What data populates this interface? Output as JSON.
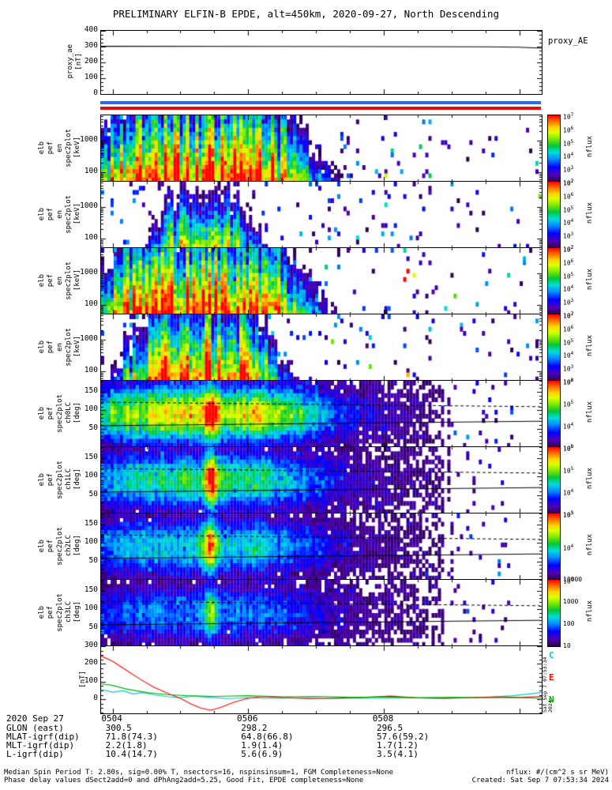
{
  "title": "PRELIMINARY ELFIN-B EPDE, alt=450km, 2020-09-27, North Descending",
  "time": {
    "tmin": 3.83,
    "tmax": 10.33,
    "major_ticks": [
      4,
      6,
      8,
      10
    ],
    "minor_step": 0.5,
    "labels": [
      {
        "t": 4,
        "text": "0504"
      },
      {
        "t": 6,
        "text": "0506"
      },
      {
        "t": 8,
        "text": "0508"
      }
    ],
    "date_label": "2020 Sep 27"
  },
  "flag_bars": {
    "top_color": "#2b6be0",
    "bottom_color": "#e01010"
  },
  "angle_envelope": [
    [
      3.83,
      0.6
    ],
    [
      4.2,
      0.75
    ],
    [
      4.8,
      0.85
    ],
    [
      5.2,
      0.92
    ],
    [
      5.45,
      1.0
    ],
    [
      5.7,
      0.8
    ],
    [
      6.1,
      0.88
    ],
    [
      6.5,
      0.7
    ],
    [
      6.9,
      0.55
    ],
    [
      7.3,
      0.32
    ],
    [
      7.7,
      0.18
    ],
    [
      8.2,
      0.12
    ],
    [
      8.6,
      0.08
    ],
    [
      8.9,
      0.03
    ],
    [
      9.3,
      0.02
    ],
    [
      10.33,
      0.015
    ]
  ],
  "chart_data": [
    {
      "id": "proxy_ae",
      "type": "line",
      "ylabel_words": [
        "proxy_ae",
        "[nT]"
      ],
      "right_label": "proxy_AE",
      "ylim": [
        0,
        400
      ],
      "yticks": [
        0,
        100,
        200,
        300,
        400
      ],
      "minor_step": 25,
      "series": [
        {
          "name": "proxy_AE",
          "color": "#000000",
          "x": [
            3.83,
            6.0,
            8.0,
            9.5,
            10.0,
            10.33
          ],
          "y": [
            302,
            301,
            300,
            299,
            296,
            290
          ]
        }
      ]
    },
    {
      "id": "en_1",
      "type": "heatmap",
      "kind": "energy",
      "ylabel_words": [
        "elb",
        "pef",
        "en",
        "spec2plot",
        "[keV]"
      ],
      "ylim": [
        50,
        6500
      ],
      "yticks": [
        100,
        1000
      ],
      "clim_log": [
        2,
        7
      ],
      "colorbar_ticks": [
        "10^7",
        "10^6",
        "10^5",
        "10^4",
        "10^3",
        "10^2"
      ],
      "colorbar_label": "nflux",
      "model": {
        "seed": 11,
        "amp": 7.0,
        "tc": 5.3,
        "tw": 1.95,
        "slope": 2.3,
        "speck": 0.055,
        "speckAmp": 1.4
      }
    },
    {
      "id": "en_2",
      "type": "heatmap",
      "kind": "energy",
      "ylabel_words": [
        "elb",
        "pef",
        "en",
        "spec2plot",
        "[keV]"
      ],
      "ylim": [
        50,
        6500
      ],
      "yticks": [
        100,
        1000
      ],
      "clim_log": [
        2,
        7
      ],
      "colorbar_ticks": [
        "10^7",
        "10^6",
        "10^5",
        "10^4",
        "10^3",
        "10^2"
      ],
      "colorbar_label": "nflux",
      "model": {
        "seed": 22,
        "amp": 5.5,
        "tc": 5.35,
        "tw": 0.95,
        "slope": 2.9,
        "speck": 0.06,
        "speckAmp": 1.2
      }
    },
    {
      "id": "en_3",
      "type": "heatmap",
      "kind": "energy",
      "ylabel_words": [
        "elb",
        "pef",
        "en",
        "spec2plot",
        "[keV]"
      ],
      "ylim": [
        50,
        6500
      ],
      "yticks": [
        100,
        1000
      ],
      "clim_log": [
        2,
        7
      ],
      "colorbar_ticks": [
        "10^7",
        "10^6",
        "10^5",
        "10^4",
        "10^3",
        "10^2"
      ],
      "colorbar_label": "nflux",
      "model": {
        "seed": 33,
        "amp": 7.1,
        "tc": 5.3,
        "tw": 1.9,
        "slope": 2.25,
        "speck": 0.055,
        "speckAmp": 1.5
      }
    },
    {
      "id": "en_4",
      "type": "heatmap",
      "kind": "energy",
      "ylabel_words": [
        "elb",
        "pef",
        "en",
        "spec2plot",
        "[keV]"
      ],
      "ylim": [
        50,
        6500
      ],
      "yticks": [
        100,
        1000
      ],
      "clim_log": [
        2,
        7
      ],
      "colorbar_ticks": [
        "10^7",
        "10^6",
        "10^5",
        "10^4",
        "10^3",
        "10^2"
      ],
      "colorbar_label": "nflux",
      "model": {
        "seed": 44,
        "amp": 6.9,
        "tc": 5.3,
        "tw": 1.35,
        "slope": 2.55,
        "speck": 0.055,
        "speckAmp": 1.4
      }
    },
    {
      "id": "ch0lc",
      "type": "heatmap",
      "kind": "angle",
      "ylabel_words": [
        "elb",
        "pef",
        "spec2plot",
        "ch0LC",
        "[deg]"
      ],
      "ylim": [
        0,
        180
      ],
      "yticks": [
        50,
        100,
        150
      ],
      "colorbar_ticks": [
        "10^6",
        "10^5",
        "10^4",
        "10^3"
      ],
      "colorbar_label": "nflux",
      "model": {
        "seed": 55,
        "scale": 0.88,
        "bump": 0.3,
        "speck": 0.05
      }
    },
    {
      "id": "ch1lc",
      "type": "heatmap",
      "kind": "angle",
      "ylabel_words": [
        "elb",
        "pef",
        "spec2plot",
        "ch1LC",
        "[deg]"
      ],
      "ylim": [
        0,
        180
      ],
      "yticks": [
        50,
        100,
        150
      ],
      "colorbar_ticks": [
        "10^6",
        "10^5",
        "10^4",
        "10^3"
      ],
      "colorbar_label": "nflux",
      "model": {
        "seed": 66,
        "scale": 0.62,
        "bump": 0.5,
        "speck": 0.05
      }
    },
    {
      "id": "ch2lc",
      "type": "heatmap",
      "kind": "angle",
      "ylabel_words": [
        "elb",
        "pef",
        "spec2plot",
        "ch2LC",
        "[deg]"
      ],
      "ylim": [
        0,
        180
      ],
      "yticks": [
        50,
        100,
        150
      ],
      "colorbar_ticks": [
        "10^5",
        "10^4",
        "10^3"
      ],
      "colorbar_label": "nflux",
      "model": {
        "seed": 77,
        "scale": 0.5,
        "bump": 0.5,
        "speck": 0.045
      }
    },
    {
      "id": "ch3lc",
      "type": "heatmap",
      "kind": "angle",
      "ylabel_words": [
        "elb",
        "pef",
        "spec2plot",
        "ch3LC",
        "[deg]"
      ],
      "ylim": [
        0,
        180
      ],
      "yticks": [
        50,
        100,
        150
      ],
      "colorbar_ticks": [
        "10000",
        "1000",
        "100",
        "10"
      ],
      "colorbar_label": "nflux",
      "model": {
        "seed": 88,
        "scale": 0.38,
        "bump": 0.3,
        "speck": 0.04
      }
    },
    {
      "id": "fgm",
      "type": "line",
      "ylabel_words": [
        "[nT]"
      ],
      "ylim": [
        -80,
        300
      ],
      "yticks": [
        0,
        100,
        200,
        300
      ],
      "minor_step": 25,
      "legend": [
        {
          "label": "C",
          "color": "#00cccc"
        },
        {
          "label": "E",
          "color": "#ff0000"
        },
        {
          "label": "N",
          "color": "#00b400"
        }
      ],
      "series": [
        {
          "name": "C",
          "color": "#00cccc",
          "x": [
            3.83,
            4.0,
            4.15,
            4.3,
            4.45,
            4.6,
            4.8,
            5.0,
            5.2,
            5.45,
            5.7,
            6.0,
            6.4,
            6.8,
            7.2,
            7.6,
            8.0,
            8.4,
            8.8,
            9.2,
            9.6,
            9.9,
            10.15,
            10.33
          ],
          "y": [
            55,
            40,
            48,
            30,
            38,
            25,
            15,
            8,
            18,
            10,
            4,
            8,
            5,
            8,
            4,
            7,
            5,
            8,
            4,
            7,
            12,
            20,
            30,
            38
          ]
        },
        {
          "name": "E",
          "color": "#ff0000",
          "x": [
            3.83,
            4.0,
            4.2,
            4.4,
            4.6,
            4.8,
            5.0,
            5.15,
            5.3,
            5.45,
            5.6,
            5.8,
            6.0,
            6.2,
            6.5,
            6.9,
            7.3,
            7.7,
            8.1,
            8.5,
            8.9,
            9.3,
            9.7,
            10.0,
            10.33
          ],
          "y": [
            245,
            215,
            165,
            115,
            70,
            35,
            5,
            -25,
            -50,
            -62,
            -45,
            -15,
            5,
            15,
            10,
            4,
            6,
            10,
            18,
            8,
            5,
            10,
            14,
            10,
            16
          ]
        },
        {
          "name": "N",
          "color": "#00b400",
          "x": [
            3.83,
            4.0,
            4.2,
            4.5,
            4.8,
            5.1,
            5.5,
            6.0,
            6.5,
            7.0,
            7.5,
            8.0,
            8.5,
            9.0,
            9.5,
            10.0,
            10.33
          ],
          "y": [
            88,
            78,
            58,
            38,
            26,
            20,
            16,
            20,
            14,
            16,
            11,
            13,
            9,
            11,
            8,
            9,
            6
          ]
        }
      ]
    }
  ],
  "ephemeris": {
    "rows": [
      {
        "label": "GLON (east)",
        "values": [
          "300.5",
          "298.2",
          "296.5"
        ]
      },
      {
        "label": "MLAT-igrf(dip)",
        "values": [
          "71.8(74.3)",
          "64.8(66.8)",
          "57.6(59.2)"
        ]
      },
      {
        "label": "MLT-igrf(dip)",
        "values": [
          "2.2(1.8)",
          "1.9(1.4)",
          "1.7(1.2)"
        ]
      },
      {
        "label": "L-igrf(dip)",
        "values": [
          "10.4(14.7)",
          "5.6(6.9)",
          "3.5(4.1)"
        ]
      }
    ]
  },
  "footer": {
    "left_lines": [
      "Median Spin Period T: 2.80s, sig=0.00% T, nsectors=16, nspinsinsum=1, FGM Completeness=None",
      "Phase delay values dSect2add=0 and dPhAng2add=5.25, Good Fit, EPDE completeness=None"
    ],
    "right_lines": [
      "nflux: #/(cm^2 s sr MeV)",
      "Created: Sat Sep 7 07:53:34 2024"
    ]
  },
  "created_vertical": "Sat Sep 7 07:53:34 2024"
}
